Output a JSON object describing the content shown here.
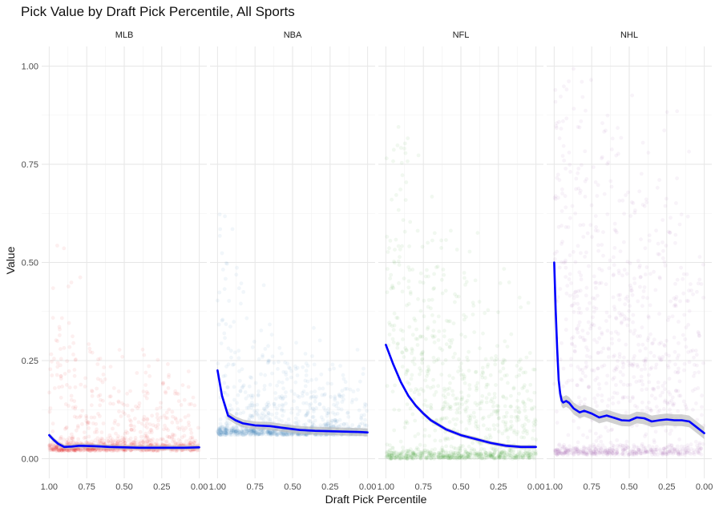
{
  "chart_data": {
    "type": "scatter",
    "title": "Pick Value by Draft Pick Percentile, All Sports",
    "xlabel": "Draft Pick Percentile",
    "ylabel": "Value",
    "xlim": [
      1.0,
      0.0
    ],
    "x_reversed": true,
    "ylim": [
      0.0,
      1.0
    ],
    "x_ticks": [
      "1.00",
      "0.75",
      "0.50",
      "0.25",
      "0.00"
    ],
    "y_ticks": [
      "0.00",
      "0.25",
      "0.50",
      "0.75",
      "1.00"
    ],
    "grid": true,
    "legend": "none",
    "smooth_color": "#0000ff",
    "band_color": "#bebebe",
    "facets": [
      {
        "name": "MLB",
        "point_color": "#e41a1c",
        "scatter_profile": {
          "floor": 0.02,
          "floor_share": 0.7,
          "mean_tail": [
            [
              1.0,
              0.09
            ],
            [
              0.9,
              0.06
            ],
            [
              0.75,
              0.05
            ],
            [
              0.5,
              0.04
            ],
            [
              0.0,
              0.04
            ]
          ],
          "spread": [
            [
              1.0,
              0.25
            ],
            [
              0.75,
              0.12
            ],
            [
              0.5,
              0.1
            ],
            [
              0.0,
              0.08
            ]
          ],
          "max_value": [
            [
              1.0,
              1.0
            ],
            [
              0.8,
              0.6
            ],
            [
              0.0,
              0.4
            ]
          ]
        },
        "smooth": {
          "x": [
            1.0,
            0.97,
            0.94,
            0.9,
            0.85,
            0.8,
            0.7,
            0.6,
            0.5,
            0.4,
            0.3,
            0.2,
            0.1,
            0.0
          ],
          "y": [
            0.06,
            0.048,
            0.038,
            0.03,
            0.031,
            0.033,
            0.032,
            0.03,
            0.029,
            0.028,
            0.028,
            0.028,
            0.028,
            0.029
          ],
          "band": 0.006
        }
      },
      {
        "name": "NBA",
        "point_color": "#377eb8",
        "scatter_profile": {
          "floor": 0.06,
          "floor_share": 0.6,
          "mean_tail": [
            [
              1.0,
              0.12
            ],
            [
              0.85,
              0.08
            ],
            [
              0.5,
              0.07
            ],
            [
              0.0,
              0.07
            ]
          ],
          "spread": [
            [
              1.0,
              0.3
            ],
            [
              0.8,
              0.12
            ],
            [
              0.0,
              0.08
            ]
          ],
          "max_value": [
            [
              1.0,
              0.7
            ],
            [
              0.5,
              0.4
            ],
            [
              0.0,
              0.4
            ]
          ]
        },
        "smooth": {
          "x": [
            1.0,
            0.97,
            0.93,
            0.88,
            0.83,
            0.75,
            0.65,
            0.55,
            0.45,
            0.35,
            0.25,
            0.15,
            0.05,
            0.0
          ],
          "y": [
            0.225,
            0.16,
            0.11,
            0.098,
            0.09,
            0.085,
            0.083,
            0.078,
            0.073,
            0.071,
            0.07,
            0.069,
            0.068,
            0.067
          ],
          "band": 0.01
        }
      },
      {
        "name": "NFL",
        "point_color": "#33a02c",
        "scatter_profile": {
          "floor": 0.0,
          "floor_share": 0.45,
          "mean_tail": [
            [
              1.0,
              0.3
            ],
            [
              0.8,
              0.16
            ],
            [
              0.6,
              0.1
            ],
            [
              0.4,
              0.07
            ],
            [
              0.0,
              0.04
            ]
          ],
          "spread": [
            [
              1.0,
              0.45
            ],
            [
              0.8,
              0.3
            ],
            [
              0.5,
              0.2
            ],
            [
              0.0,
              0.12
            ]
          ],
          "max_value": [
            [
              1.0,
              0.95
            ],
            [
              0.5,
              0.7
            ],
            [
              0.0,
              0.5
            ]
          ]
        },
        "smooth": {
          "x": [
            1.0,
            0.95,
            0.9,
            0.85,
            0.8,
            0.75,
            0.7,
            0.6,
            0.5,
            0.4,
            0.3,
            0.2,
            0.1,
            0.0
          ],
          "y": [
            0.29,
            0.24,
            0.195,
            0.16,
            0.135,
            0.115,
            0.098,
            0.075,
            0.06,
            0.05,
            0.04,
            0.033,
            0.03,
            0.03
          ],
          "band": 0.005
        }
      },
      {
        "name": "NHL",
        "point_color": "#984ea3",
        "scatter_profile": {
          "floor": 0.01,
          "floor_share": 0.35,
          "mean_tail": [
            [
              1.0,
              0.4
            ],
            [
              0.95,
              0.2
            ],
            [
              0.7,
              0.15
            ],
            [
              0.0,
              0.12
            ]
          ],
          "spread": [
            [
              1.0,
              0.6
            ],
            [
              0.9,
              0.4
            ],
            [
              0.5,
              0.35
            ],
            [
              0.0,
              0.3
            ]
          ],
          "max_value": [
            [
              1.0,
              1.0
            ],
            [
              0.0,
              1.0
            ]
          ]
        },
        "smooth": {
          "x": [
            1.0,
            0.99,
            0.98,
            0.97,
            0.96,
            0.95,
            0.94,
            0.92,
            0.9,
            0.87,
            0.83,
            0.8,
            0.75,
            0.7,
            0.65,
            0.6,
            0.55,
            0.5,
            0.45,
            0.4,
            0.35,
            0.3,
            0.25,
            0.2,
            0.15,
            0.1,
            0.05,
            0.0
          ],
          "y": [
            0.5,
            0.38,
            0.28,
            0.2,
            0.165,
            0.148,
            0.143,
            0.147,
            0.142,
            0.128,
            0.118,
            0.122,
            0.115,
            0.105,
            0.11,
            0.104,
            0.098,
            0.097,
            0.105,
            0.103,
            0.095,
            0.098,
            0.1,
            0.098,
            0.098,
            0.095,
            0.08,
            0.065
          ],
          "band": 0.015
        }
      }
    ]
  }
}
